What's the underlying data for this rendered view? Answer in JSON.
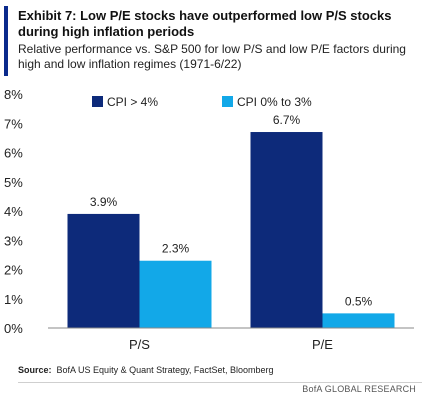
{
  "header": {
    "title": "Exhibit 7: Low P/E stocks have outperformed low P/S stocks during high inflation periods",
    "subtitle": "Relative performance vs. S&P 500 for low P/S and low P/E factors during high and low inflation regimes (1971-6/22)"
  },
  "footer": {
    "source_label": "Source:",
    "source_text": "BofA US Equity & Quant Strategy, FactSet, Bloomberg",
    "brand": "BofA GLOBAL RESEARCH"
  },
  "colors": {
    "accent": "#0a2a8c",
    "series_dark": "#0d2a7a",
    "series_light": "#12a8e8"
  },
  "chart_data": {
    "type": "bar",
    "categories": [
      "P/S",
      "P/E"
    ],
    "series": [
      {
        "name": "CPI > 4%",
        "values": [
          3.9,
          6.7
        ],
        "labels": [
          "3.9%",
          "6.7%"
        ],
        "color": "#0d2a7a"
      },
      {
        "name": "CPI 0% to 3%",
        "values": [
          2.3,
          0.5
        ],
        "labels": [
          "2.3%",
          "0.5%"
        ],
        "color": "#12a8e8"
      }
    ],
    "ylim": [
      0,
      8
    ],
    "yticks": [
      "0%",
      "1%",
      "2%",
      "3%",
      "4%",
      "5%",
      "6%",
      "7%",
      "8%"
    ],
    "grid": false,
    "legend_position": "top"
  }
}
